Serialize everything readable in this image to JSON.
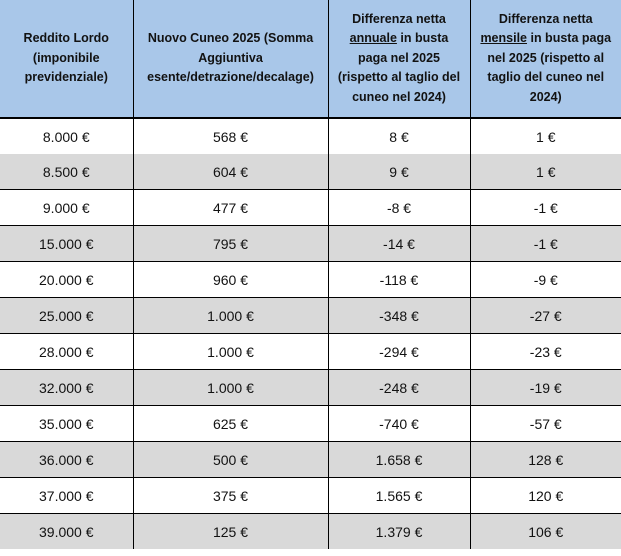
{
  "chart_data": {
    "type": "table",
    "title": "",
    "columns": [
      "Reddito Lordo (imponibile previdenziale)",
      "Nuovo Cuneo 2025 (Somma Aggiuntiva esente/detrazione/decalage)",
      "Differenza netta annuale in busta paga nel 2025 (rispetto al taglio del cuneo nel 2024)",
      "Differenza netta mensile in busta paga nel 2025 (rispetto al taglio del cuneo nel 2024)"
    ],
    "rows": [
      [
        "8.000 €",
        "568 €",
        "8 €",
        "1 €"
      ],
      [
        "8.500 €",
        "604 €",
        "9 €",
        "1 €"
      ],
      [
        "9.000 €",
        "477 €",
        "-8 €",
        "-1 €"
      ],
      [
        "15.000 €",
        "795 €",
        "-14 €",
        "-1 €"
      ],
      [
        "20.000 €",
        "960 €",
        "-118 €",
        "-9 €"
      ],
      [
        "25.000 €",
        "1.000 €",
        "-348 €",
        "-27 €"
      ],
      [
        "28.000 €",
        "1.000 €",
        "-294 €",
        "-23 €"
      ],
      [
        "32.000 €",
        "1.000 €",
        "-248 €",
        "-19 €"
      ],
      [
        "35.000 €",
        "625 €",
        "-740 €",
        "-57 €"
      ],
      [
        "36.000 €",
        "500 €",
        "1.658 €",
        "128 €"
      ],
      [
        "37.000 €",
        "375 €",
        "1.565 €",
        "120 €"
      ],
      [
        "39.000 €",
        "125 €",
        "1.379 €",
        "106 €"
      ]
    ]
  },
  "header_display": [
    {
      "prefix": "Reddito Lordo (imponibile previdenziale)",
      "underlined": "",
      "suffix": ""
    },
    {
      "prefix": "Nuovo Cuneo 2025 (Somma Aggiuntiva esente/detrazione/decalage)",
      "underlined": "",
      "suffix": ""
    },
    {
      "prefix": "Differenza netta ",
      "underlined": "annuale",
      "suffix": " in busta paga nel 2025 (rispetto al taglio del cuneo nel 2024)"
    },
    {
      "prefix": "Differenza netta ",
      "underlined": "mensile",
      "suffix": " in busta paga nel 2025 (rispetto al taglio del cuneo nel 2024)"
    }
  ],
  "colors": {
    "header_bg": "#A9C7E9",
    "alt_row_bg": "#D9D9D9",
    "border": "#000000",
    "text": "#121212"
  }
}
